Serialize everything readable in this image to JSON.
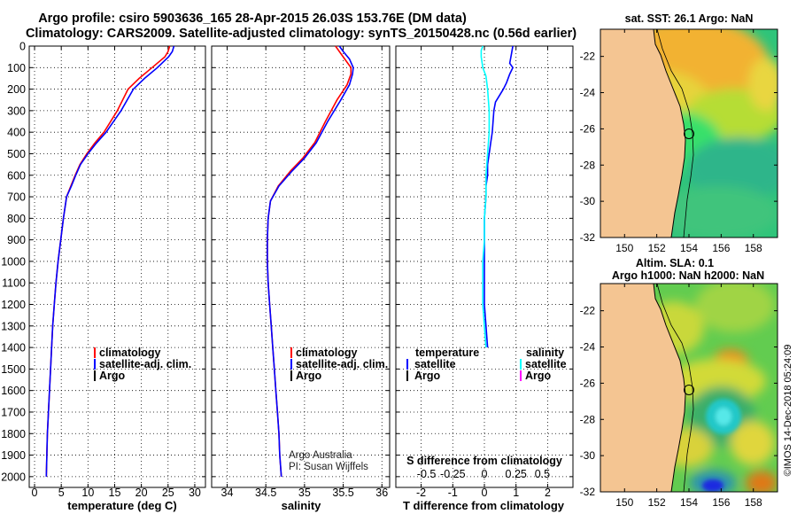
{
  "title_line1": "Argo profile: csiro 5903636_165 28-Apr-2015 26.03S 153.76E (DM data)",
  "title_line2": "Climatology: CARS2009. Satellite-adjusted climatology: synTS_20150428.nc (0.56d earlier)",
  "credit": [
    "Argo Australia",
    "PI: Susan Wijffels"
  ],
  "footer_rotated": "©IMOS 14-Dec-2018 05:24:09",
  "colors": {
    "climatology": "#ff0000",
    "satellite": "#0000ff",
    "argo": "#000000",
    "s_satellite": "#00ffff",
    "s_argo": "#ff00ff"
  },
  "legends": {
    "temperature_panel": [
      "climatology",
      "satellite-adj. clim.",
      "Argo"
    ],
    "salinity_panel": [
      "climatology",
      "satellite-adj. clim.",
      "Argo"
    ],
    "diff_panel_left_title": "temperature",
    "diff_panel_left": [
      "satellite",
      "Argo"
    ],
    "diff_panel_right_title": "salinity",
    "diff_panel_right": [
      "satellite",
      "Argo"
    ]
  },
  "map_titles": {
    "sst": "sat. SST: 26.1 Argo: NaN",
    "sla_line1": "Altim. SLA: 0.1",
    "sla_line2": "Argo h1000: NaN h2000: NaN"
  },
  "chart_data": [
    {
      "type": "line",
      "name": "temperature",
      "xlabel": "temperature (deg C)",
      "ylabel": "",
      "xlim": [
        -1,
        32
      ],
      "ylim": [
        2050,
        0
      ],
      "x_ticks": [
        0,
        5,
        10,
        15,
        20,
        25,
        30
      ],
      "y_ticks": [
        0,
        100,
        200,
        300,
        400,
        500,
        600,
        700,
        800,
        900,
        1000,
        1100,
        1200,
        1300,
        1400,
        1500,
        1600,
        1700,
        1800,
        1900,
        2000
      ],
      "grid": true,
      "legend": "lower-middle",
      "series": [
        {
          "name": "climatology",
          "color": "#ff0000",
          "points": [
            [
              25.3,
              0
            ],
            [
              25.0,
              25
            ],
            [
              24.4,
              50
            ],
            [
              22.0,
              100
            ],
            [
              19.6,
              150
            ],
            [
              17.5,
              200
            ],
            [
              15.5,
              300
            ],
            [
              13.0,
              400
            ],
            [
              11.3,
              450
            ],
            [
              9.8,
              500
            ],
            [
              8.5,
              550
            ],
            [
              7.6,
              600
            ],
            [
              6.8,
              650
            ],
            [
              6.0,
              700
            ],
            [
              5.4,
              800
            ],
            [
              4.9,
              900
            ],
            [
              4.4,
              1000
            ],
            [
              4.0,
              1100
            ],
            [
              3.7,
              1200
            ],
            [
              3.4,
              1300
            ],
            [
              3.2,
              1400
            ],
            [
              3.0,
              1500
            ],
            [
              2.8,
              1600
            ],
            [
              2.6,
              1700
            ],
            [
              2.4,
              1800
            ],
            [
              2.3,
              1900
            ],
            [
              2.2,
              2000
            ]
          ]
        },
        {
          "name": "satellite-adj. clim.",
          "color": "#0000ff",
          "points": [
            [
              26.1,
              0
            ],
            [
              25.8,
              25
            ],
            [
              25.1,
              50
            ],
            [
              23.0,
              100
            ],
            [
              20.6,
              150
            ],
            [
              18.5,
              200
            ],
            [
              16.2,
              300
            ],
            [
              13.4,
              400
            ],
            [
              11.6,
              450
            ],
            [
              10.0,
              500
            ],
            [
              8.6,
              550
            ],
            [
              7.7,
              600
            ],
            [
              6.9,
              650
            ],
            [
              6.0,
              700
            ],
            [
              5.4,
              800
            ],
            [
              4.9,
              900
            ],
            [
              4.4,
              1000
            ],
            [
              4.0,
              1100
            ],
            [
              3.7,
              1200
            ],
            [
              3.4,
              1300
            ],
            [
              3.2,
              1400
            ],
            [
              3.0,
              1500
            ],
            [
              2.8,
              1600
            ],
            [
              2.6,
              1700
            ],
            [
              2.4,
              1800
            ],
            [
              2.3,
              1900
            ],
            [
              2.2,
              2000
            ]
          ]
        }
      ]
    },
    {
      "type": "line",
      "name": "salinity",
      "xlabel": "salinity",
      "ylabel": "",
      "xlim": [
        33.8,
        36.1
      ],
      "ylim": [
        2050,
        0
      ],
      "x_ticks": [
        34,
        34.5,
        35,
        35.5,
        36
      ],
      "x_tick_labels": [
        "34",
        "34.5",
        "35",
        "35.5",
        "36"
      ],
      "grid": true,
      "legend": "lower-middle",
      "series": [
        {
          "name": "climatology",
          "color": "#ff0000",
          "points": [
            [
              35.4,
              0
            ],
            [
              35.45,
              25
            ],
            [
              35.52,
              60
            ],
            [
              35.6,
              100
            ],
            [
              35.6,
              130
            ],
            [
              35.55,
              180
            ],
            [
              35.42,
              250
            ],
            [
              35.27,
              350
            ],
            [
              35.13,
              450
            ],
            [
              34.98,
              520
            ],
            [
              34.82,
              580
            ],
            [
              34.66,
              650
            ],
            [
              34.56,
              720
            ],
            [
              34.53,
              800
            ],
            [
              34.52,
              900
            ],
            [
              34.52,
              1000
            ],
            [
              34.53,
              1100
            ],
            [
              34.55,
              1200
            ],
            [
              34.57,
              1300
            ],
            [
              34.59,
              1400
            ],
            [
              34.61,
              1500
            ],
            [
              34.63,
              1600
            ],
            [
              34.65,
              1700
            ],
            [
              34.67,
              1800
            ],
            [
              34.68,
              1900
            ],
            [
              34.7,
              2000
            ]
          ]
        },
        {
          "name": "satellite-adj. clim.",
          "color": "#0000ff",
          "points": [
            [
              35.45,
              0
            ],
            [
              35.5,
              25
            ],
            [
              35.58,
              60
            ],
            [
              35.63,
              100
            ],
            [
              35.62,
              130
            ],
            [
              35.58,
              180
            ],
            [
              35.47,
              250
            ],
            [
              35.3,
              350
            ],
            [
              35.15,
              450
            ],
            [
              35.0,
              520
            ],
            [
              34.84,
              580
            ],
            [
              34.67,
              650
            ],
            [
              34.56,
              720
            ],
            [
              34.53,
              800
            ],
            [
              34.52,
              900
            ],
            [
              34.52,
              1000
            ],
            [
              34.53,
              1100
            ],
            [
              34.55,
              1200
            ],
            [
              34.57,
              1300
            ],
            [
              34.59,
              1400
            ],
            [
              34.61,
              1500
            ],
            [
              34.63,
              1600
            ],
            [
              34.65,
              1700
            ],
            [
              34.67,
              1800
            ],
            [
              34.68,
              1900
            ],
            [
              34.7,
              2000
            ]
          ]
        }
      ]
    },
    {
      "type": "line",
      "name": "difference",
      "xlabel": "T difference from climatology",
      "xlabel2": "S difference from climatology",
      "xlim": [
        -2.8,
        2.8
      ],
      "ylim": [
        2050,
        0
      ],
      "x_ticks": [
        -2,
        -1,
        0,
        1,
        2
      ],
      "x_tick_labels": [
        "-2",
        "-1",
        "0",
        "1",
        "2"
      ],
      "x2_tick_labels": [
        "-0.5",
        "-0.25",
        "0",
        "0.25",
        "0.5"
      ],
      "grid": true,
      "legend": "lower-middle",
      "series": [
        {
          "name": "temperature satellite",
          "color": "#0000ff",
          "points": [
            [
              0.9,
              0
            ],
            [
              0.85,
              40
            ],
            [
              0.8,
              80
            ],
            [
              0.9,
              100
            ],
            [
              0.8,
              130
            ],
            [
              0.7,
              170
            ],
            [
              0.6,
              200
            ],
            [
              0.35,
              260
            ],
            [
              0.3,
              300
            ],
            [
              0.25,
              400
            ],
            [
              0.2,
              450
            ],
            [
              0.15,
              500
            ],
            [
              0.1,
              550
            ],
            [
              0.1,
              600
            ],
            [
              0.05,
              650
            ],
            [
              0.05,
              700
            ],
            [
              0.0,
              800
            ],
            [
              0.0,
              900
            ],
            [
              0.0,
              1000
            ],
            [
              0.0,
              1100
            ],
            [
              0.0,
              1200
            ],
            [
              0.05,
              1300
            ],
            [
              0.1,
              1400
            ]
          ]
        },
        {
          "name": "salinity satellite",
          "color": "#00ffff",
          "points": [
            [
              -0.05,
              0
            ],
            [
              -0.1,
              20
            ],
            [
              -0.1,
              50
            ],
            [
              -0.05,
              100
            ],
            [
              0.05,
              140
            ],
            [
              0.1,
              200
            ],
            [
              0.15,
              300
            ],
            [
              0.15,
              400
            ],
            [
              0.1,
              500
            ],
            [
              0.05,
              600
            ],
            [
              0.05,
              700
            ],
            [
              0.0,
              800
            ],
            [
              0.0,
              900
            ],
            [
              -0.05,
              1000
            ],
            [
              -0.05,
              1100
            ],
            [
              -0.05,
              1200
            ],
            [
              0.0,
              1300
            ],
            [
              0.05,
              1400
            ]
          ]
        }
      ]
    },
    {
      "type": "heatmap",
      "name": "sat-sst-map",
      "title": "sat. SST: 26.1 Argo: NaN",
      "x_ticks": [
        150,
        152,
        154,
        156,
        158
      ],
      "y_ticks": [
        -22,
        -24,
        -26,
        -28,
        -30,
        -32
      ],
      "xlim": [
        148.5,
        159.5
      ],
      "ylim": [
        -32,
        -20.5
      ],
      "argo_position": [
        153.76,
        -26.03
      ]
    },
    {
      "type": "heatmap",
      "name": "altim-sla-map",
      "title": "Altim. SLA: 0.1",
      "x_ticks": [
        150,
        152,
        154,
        156,
        158
      ],
      "y_ticks": [
        -22,
        -24,
        -26,
        -28,
        -30,
        -32
      ],
      "xlim": [
        148.5,
        159.5
      ],
      "ylim": [
        -32,
        -20.5
      ],
      "argo_position": [
        153.76,
        -26.03
      ]
    }
  ]
}
